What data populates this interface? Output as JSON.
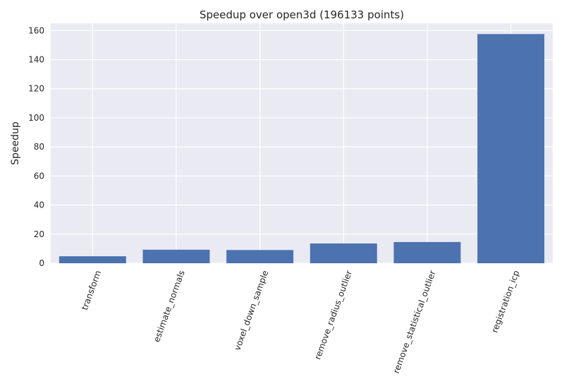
{
  "chart_data": {
    "type": "bar",
    "title": "Speedup over open3d (196133 points)",
    "xlabel": "",
    "ylabel": "Speedup",
    "categories": [
      "transform",
      "estimate_normals",
      "voxel_down_sample",
      "remove_radius_outlier",
      "remove_statistical_outlier",
      "registration_icp"
    ],
    "values": [
      4.8,
      9.3,
      9.1,
      13.6,
      14.6,
      157.6
    ],
    "ylim": [
      0,
      165
    ],
    "yticks": [
      0,
      20,
      40,
      60,
      80,
      100,
      120,
      140,
      160
    ],
    "grid": true,
    "legend": "none",
    "colors": {
      "bar": "#4c72b0",
      "plot_background": "#eaeaf2",
      "grid": "#ffffff",
      "text": "#262626"
    }
  }
}
